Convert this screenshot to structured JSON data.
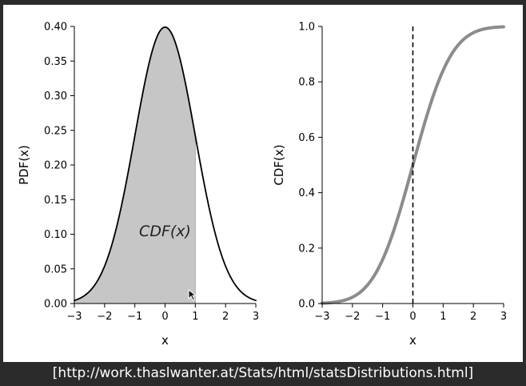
{
  "caption": "[http://work.thaslwanter.at/Stats/html/statsDistributions.html]",
  "cursor_icon": "mouse-pointer-icon",
  "colors": {
    "background": "#2b2b2b",
    "panel": "#ffffff",
    "pdf_line": "#000000",
    "pdf_fill": "#c6c6c6",
    "cdf_line": "#8c8c8c",
    "vline": "#000000"
  },
  "chart_data": [
    {
      "type": "area",
      "title": "",
      "xlabel": "x",
      "ylabel": "PDF(x)",
      "xlim": [
        -3,
        3
      ],
      "ylim": [
        0,
        0.4
      ],
      "xticks": [
        "−3",
        "−2",
        "−1",
        "0",
        "1",
        "2",
        "3"
      ],
      "xtick_values": [
        -3,
        -2,
        -1,
        0,
        1,
        2,
        3
      ],
      "yticks": [
        "0.00",
        "0.05",
        "0.10",
        "0.15",
        "0.20",
        "0.25",
        "0.30",
        "0.35",
        "0.40"
      ],
      "ytick_values": [
        0,
        0.05,
        0.1,
        0.15,
        0.2,
        0.25,
        0.3,
        0.35,
        0.4
      ],
      "curve": "standard normal probability density",
      "x": [
        -3,
        -2.5,
        -2,
        -1.5,
        -1,
        -0.5,
        0,
        0.5,
        1,
        1.5,
        2,
        2.5,
        3
      ],
      "y": [
        0.0044,
        0.0175,
        0.054,
        0.1295,
        0.242,
        0.3521,
        0.3989,
        0.3521,
        0.242,
        0.1295,
        0.054,
        0.0175,
        0.0044
      ],
      "shaded_region": {
        "from": -3,
        "to": 1
      },
      "annotation": {
        "text": "CDF(x)",
        "x": 0,
        "y": 0.105
      },
      "grid": false
    },
    {
      "type": "line",
      "title": "",
      "xlabel": "x",
      "ylabel": "CDF(x)",
      "xlim": [
        -3,
        3
      ],
      "ylim": [
        0,
        1
      ],
      "xticks": [
        "−3",
        "−2",
        "−1",
        "0",
        "1",
        "2",
        "3"
      ],
      "xtick_values": [
        -3,
        -2,
        -1,
        0,
        1,
        2,
        3
      ],
      "yticks": [
        "0.0",
        "0.2",
        "0.4",
        "0.6",
        "0.8",
        "1.0"
      ],
      "ytick_values": [
        0,
        0.2,
        0.4,
        0.6,
        0.8,
        1
      ],
      "curve": "standard normal cumulative distribution",
      "x": [
        -3,
        -2.5,
        -2,
        -1.5,
        -1,
        -0.5,
        0,
        0.5,
        1,
        1.5,
        2,
        2.5,
        3
      ],
      "y": [
        0.0013,
        0.0062,
        0.0228,
        0.0668,
        0.1587,
        0.3085,
        0.5,
        0.6915,
        0.8413,
        0.9332,
        0.9772,
        0.9938,
        0.9987
      ],
      "vline": {
        "x": 0,
        "style": "dashed"
      },
      "grid": false
    }
  ]
}
